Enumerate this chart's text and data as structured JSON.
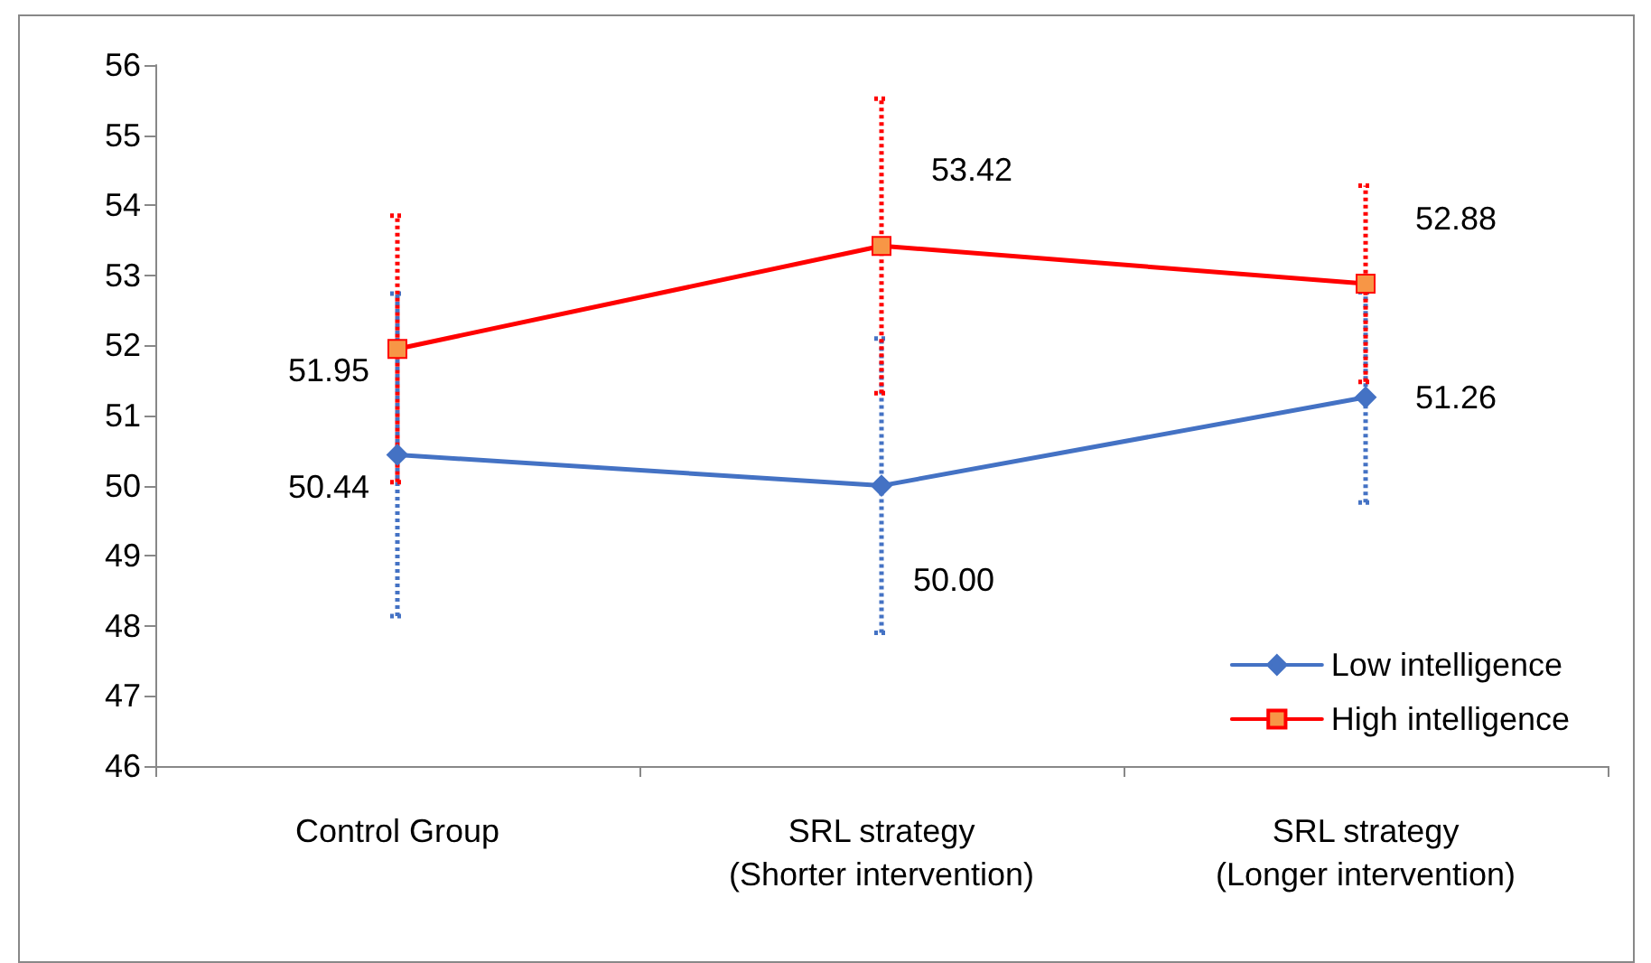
{
  "chart_data": {
    "type": "line",
    "categories": [
      "Control Group",
      "SRL strategy\n(Shorter intervention)",
      "SRL strategy\n(Longer intervention)"
    ],
    "series": [
      {
        "name": "Low intelligence",
        "color": "#4472c4",
        "marker": "diamond",
        "values": [
          50.44,
          50.0,
          51.26
        ],
        "value_labels": [
          "50.44",
          "50.00",
          "51.26"
        ],
        "errors": [
          2.3,
          2.1,
          1.5
        ]
      },
      {
        "name": "High intelligence",
        "color": "#ff0000",
        "marker": "square",
        "values": [
          51.95,
          53.42,
          52.88
        ],
        "value_labels": [
          "51.95",
          "53.42",
          "52.88"
        ],
        "errors": [
          1.9,
          2.1,
          1.4
        ]
      }
    ],
    "ylim": [
      46,
      56
    ],
    "yticks": [
      46,
      47,
      48,
      49,
      50,
      51,
      52,
      53,
      54,
      55,
      56
    ],
    "grid": false,
    "legend": "bottom right",
    "line_style": "solid"
  }
}
